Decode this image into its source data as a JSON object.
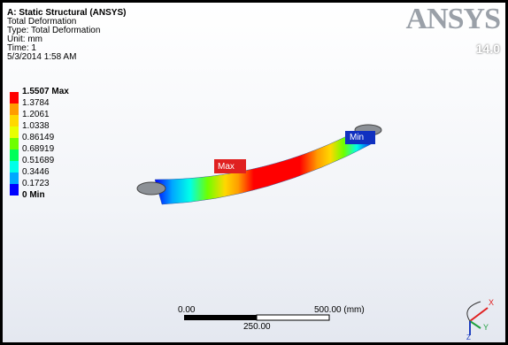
{
  "header": {
    "title": "A: Static Structural (ANSYS)",
    "lines": [
      "Total Deformation",
      "Type: Total Deformation",
      "Unit: mm",
      "Time: 1",
      "5/3/2014 1:58 AM"
    ]
  },
  "legend": {
    "labels": [
      "1.5507 Max",
      "1.3784",
      "1.2061",
      "1.0338",
      "0.86149",
      "0.68919",
      "0.51689",
      "0.3446",
      "0.1723",
      "0 Min"
    ]
  },
  "logo": {
    "brand": "ANSYS",
    "version": "14.0"
  },
  "probes": {
    "max": "Max",
    "min": "Min"
  },
  "scale_bar": {
    "start": "0.00",
    "end": "500.00 (mm)",
    "middle": "250.00"
  },
  "triad": {
    "x": "X",
    "y": "Y",
    "z": "Z"
  }
}
